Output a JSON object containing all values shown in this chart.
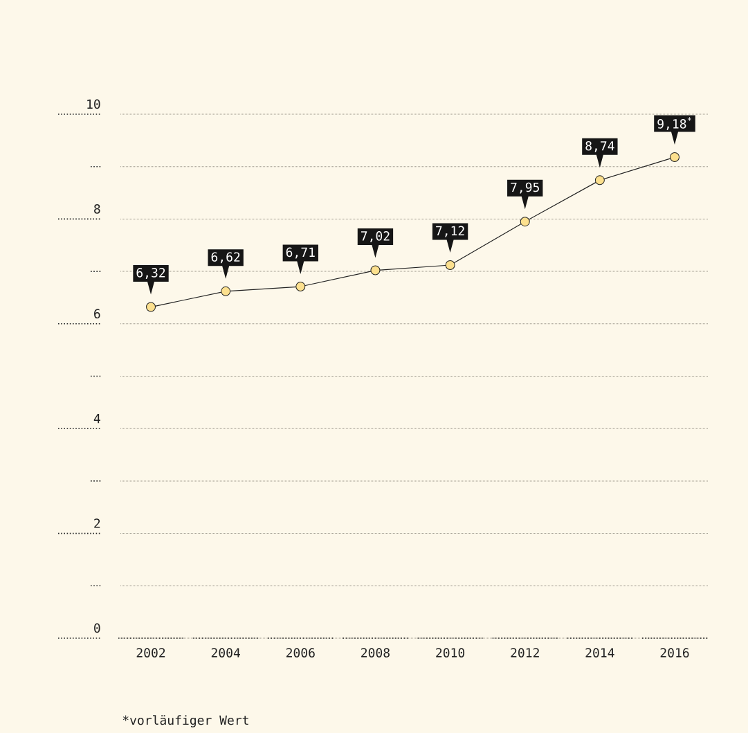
{
  "chart_data": {
    "type": "line",
    "categories": [
      "2002",
      "2004",
      "2006",
      "2008",
      "2010",
      "2012",
      "2014",
      "2016"
    ],
    "values": [
      6.32,
      6.62,
      6.71,
      7.02,
      7.12,
      7.95,
      8.74,
      9.18
    ],
    "value_labels": [
      "6,32",
      "6,62",
      "6,71",
      "7,02",
      "7,12",
      "7,95",
      "8,74",
      "9,18$^{*}$"
    ],
    "color": "#fce08e",
    "marker": "circle",
    "line_style": "solid",
    "ylim": [
      0,
      10
    ],
    "yticks": [
      0,
      {
        "value": 1,
        "label": null
      },
      2,
      {
        "value": 3,
        "label": null
      },
      4,
      {
        "value": 5,
        "label": null
      },
      6,
      {
        "value": 7,
        "label": null
      },
      8,
      {
        "value": 9,
        "label": null
      },
      10
    ],
    "grid": "y",
    "annotations": [
      "*vorläufiger Wert"
    ]
  }
}
